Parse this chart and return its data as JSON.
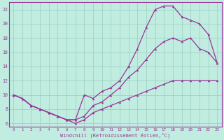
{
  "bg_color": "#c0ede0",
  "line_color": "#993399",
  "grid_color": "#99ccbb",
  "xlabel": "Windchill (Refroidissement éolien,°C)",
  "xlim": [
    -0.5,
    23.5
  ],
  "ylim": [
    5.5,
    23
  ],
  "xticks": [
    0,
    1,
    2,
    3,
    4,
    5,
    6,
    7,
    8,
    9,
    10,
    11,
    12,
    13,
    14,
    15,
    16,
    17,
    18,
    19,
    20,
    21,
    22,
    23
  ],
  "yticks": [
    6,
    8,
    10,
    12,
    14,
    16,
    18,
    20,
    22
  ],
  "line_top_x": [
    0,
    1,
    2,
    3,
    4,
    5,
    6,
    7,
    8,
    9,
    10,
    11,
    12,
    13,
    14,
    15,
    16,
    17,
    18,
    19,
    20,
    21,
    22,
    23
  ],
  "line_top_y": [
    10,
    9.5,
    8.5,
    8,
    7.5,
    7,
    6.5,
    6.5,
    10,
    9.5,
    10.5,
    11,
    12,
    14,
    16.5,
    19.5,
    22,
    22.5,
    22.5,
    21,
    20.5,
    20,
    18.5,
    14.5
  ],
  "line_mid_x": [
    0,
    1,
    2,
    3,
    4,
    5,
    6,
    7,
    8,
    9,
    10,
    11,
    12,
    13,
    14,
    15,
    16,
    17,
    18,
    19,
    20,
    21,
    22,
    23
  ],
  "line_mid_y": [
    10,
    9.5,
    8.5,
    8,
    7.5,
    7,
    6.5,
    6.5,
    7,
    8.5,
    9,
    10,
    11,
    12.5,
    13.5,
    15,
    16.5,
    17.5,
    18,
    17.5,
    18,
    16.5,
    16,
    14.5
  ],
  "line_bot_x": [
    0,
    1,
    2,
    3,
    4,
    5,
    6,
    7,
    8,
    9,
    10,
    11,
    12,
    13,
    14,
    15,
    16,
    17,
    18,
    19,
    20,
    21,
    22,
    23
  ],
  "line_bot_y": [
    10,
    9.5,
    8.5,
    8,
    7.5,
    7,
    6.5,
    6,
    6.5,
    7.5,
    8,
    8.5,
    9,
    9.5,
    10,
    10.5,
    11,
    11.5,
    12,
    12,
    12,
    12,
    12,
    12
  ]
}
